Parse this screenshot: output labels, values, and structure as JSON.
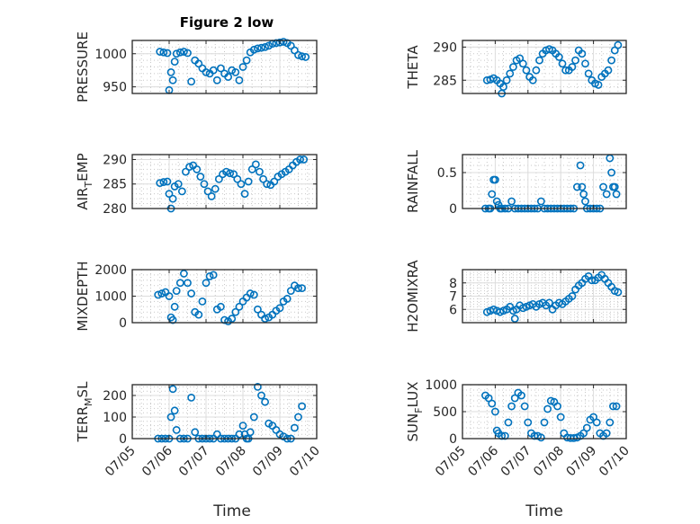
{
  "figure": {
    "title": "Figure 2 low",
    "xlabel": "Time",
    "x_tick_labels": [
      "07/05",
      "07/06",
      "07/07",
      "07/08",
      "07/09",
      "07/10"
    ]
  },
  "chart_data": [
    {
      "type": "scatter",
      "panel": "PRESSURE",
      "ylabel": "PRESSURE",
      "ylim": [
        940,
        1020
      ],
      "yticks": [
        950,
        1000
      ],
      "ytick_labels": [
        "950",
        "1000"
      ],
      "x_day_range": [
        5.0,
        10.0
      ],
      "marker": "circle",
      "color": "#0072BD",
      "x": [
        5.75,
        5.85,
        5.95,
        6.0,
        6.05,
        6.1,
        6.15,
        6.2,
        6.3,
        6.4,
        6.5,
        6.6,
        6.7,
        6.8,
        6.9,
        7.0,
        7.1,
        7.2,
        7.3,
        7.4,
        7.5,
        7.6,
        7.7,
        7.8,
        7.9,
        8.0,
        8.1,
        8.2,
        8.3,
        8.4,
        8.5,
        8.6,
        8.7,
        8.8,
        8.9,
        9.0,
        9.1,
        9.2,
        9.3,
        9.4,
        9.5,
        9.6,
        9.7
      ],
      "y": [
        1003,
        1002,
        1001,
        945,
        972,
        960,
        988,
        1000,
        1002,
        1003,
        1001,
        958,
        990,
        985,
        978,
        972,
        970,
        975,
        960,
        978,
        970,
        965,
        975,
        972,
        960,
        980,
        990,
        1002,
        1006,
        1008,
        1009,
        1010,
        1012,
        1015,
        1016,
        1017,
        1018,
        1016,
        1012,
        1005,
        998,
        996,
        995
      ]
    },
    {
      "type": "scatter",
      "panel": "THETA",
      "ylabel": "THETA",
      "ylim": [
        283,
        291
      ],
      "yticks": [
        285,
        290
      ],
      "ytick_labels": [
        "285",
        "290"
      ],
      "x_day_range": [
        5.0,
        10.0
      ],
      "marker": "circle",
      "color": "#0072BD",
      "x": [
        5.75,
        5.85,
        5.95,
        6.05,
        6.15,
        6.2,
        6.25,
        6.35,
        6.45,
        6.55,
        6.65,
        6.75,
        6.85,
        6.95,
        7.05,
        7.15,
        7.25,
        7.35,
        7.45,
        7.55,
        7.65,
        7.75,
        7.85,
        7.95,
        8.05,
        8.15,
        8.25,
        8.35,
        8.45,
        8.55,
        8.65,
        8.75,
        8.85,
        8.95,
        9.05,
        9.15,
        9.25,
        9.35,
        9.45,
        9.55,
        9.65,
        9.75
      ],
      "y": [
        285.0,
        285.1,
        285.3,
        285.0,
        284.5,
        283.0,
        284.0,
        285.0,
        286.0,
        287.0,
        288.0,
        288.3,
        287.5,
        286.5,
        285.5,
        285.0,
        286.5,
        288.0,
        289.0,
        289.5,
        289.7,
        289.5,
        289.0,
        288.5,
        287.5,
        286.5,
        286.5,
        287.0,
        288.0,
        289.5,
        289.0,
        287.5,
        286.0,
        285.0,
        284.5,
        284.3,
        285.5,
        286.0,
        286.5,
        288.0,
        289.5,
        290.3
      ]
    },
    {
      "type": "scatter",
      "panel": "AIR_TEMP",
      "ylabel": "AIR_TEMP",
      "ylim": [
        280,
        291
      ],
      "yticks": [
        280,
        285,
        290
      ],
      "ytick_labels": [
        "280",
        "285",
        "290"
      ],
      "x_day_range": [
        5.0,
        10.0
      ],
      "marker": "circle",
      "color": "#0072BD",
      "x": [
        5.75,
        5.85,
        5.95,
        6.0,
        6.05,
        6.1,
        6.15,
        6.25,
        6.35,
        6.45,
        6.55,
        6.65,
        6.75,
        6.85,
        6.95,
        7.05,
        7.15,
        7.25,
        7.35,
        7.45,
        7.55,
        7.65,
        7.75,
        7.85,
        7.95,
        8.05,
        8.15,
        8.25,
        8.35,
        8.45,
        8.55,
        8.65,
        8.75,
        8.85,
        8.95,
        9.05,
        9.15,
        9.25,
        9.35,
        9.45,
        9.55,
        9.65
      ],
      "y": [
        285.2,
        285.4,
        285.5,
        283.0,
        280.0,
        282.0,
        284.5,
        285.0,
        283.5,
        287.5,
        288.5,
        288.8,
        288.0,
        286.5,
        285.0,
        283.5,
        282.5,
        284.0,
        286.0,
        287.0,
        287.5,
        287.2,
        287.0,
        286.0,
        285.0,
        283.0,
        285.5,
        288.0,
        289.0,
        287.5,
        286.0,
        285.0,
        284.8,
        285.5,
        286.5,
        287.0,
        287.5,
        288.0,
        288.8,
        289.5,
        290.0,
        290.0
      ]
    },
    {
      "type": "scatter",
      "panel": "RAINFALL",
      "ylabel": "RAINFALL",
      "ylim": [
        0,
        0.75
      ],
      "yticks": [
        0,
        0.5
      ],
      "ytick_labels": [
        "0",
        "0.5"
      ],
      "x_day_range": [
        5.0,
        10.0
      ],
      "marker": "circle",
      "color": "#0072BD",
      "x": [
        5.7,
        5.8,
        5.85,
        5.9,
        5.95,
        6.0,
        6.05,
        6.1,
        6.15,
        6.2,
        6.3,
        6.4,
        6.5,
        6.6,
        6.7,
        6.8,
        6.9,
        7.0,
        7.1,
        7.2,
        7.3,
        7.4,
        7.5,
        7.6,
        7.7,
        7.8,
        7.9,
        8.0,
        8.1,
        8.2,
        8.3,
        8.4,
        8.5,
        8.6,
        8.65,
        8.7,
        8.75,
        8.8,
        8.9,
        9.0,
        9.1,
        9.2,
        9.3,
        9.4,
        9.5,
        9.55,
        9.6,
        9.65,
        9.7
      ],
      "y": [
        0,
        0,
        0,
        0.2,
        0.4,
        0.4,
        0.1,
        0.05,
        0,
        0,
        0,
        0,
        0.1,
        0,
        0,
        0,
        0,
        0,
        0,
        0,
        0,
        0.1,
        0,
        0,
        0,
        0,
        0,
        0,
        0,
        0,
        0,
        0,
        0.3,
        0.6,
        0.3,
        0.2,
        0.1,
        0,
        0,
        0,
        0,
        0,
        0.3,
        0.2,
        0.7,
        0.5,
        0.3,
        0.3,
        0.2
      ]
    },
    {
      "type": "scatter",
      "panel": "MIXDEPTH",
      "ylabel": "MIXDEPTH",
      "ylim": [
        0,
        2000
      ],
      "yticks": [
        0,
        1000,
        2000
      ],
      "ytick_labels": [
        "0",
        "1000",
        "2000"
      ],
      "x_day_range": [
        5.0,
        10.0
      ],
      "marker": "circle",
      "color": "#0072BD",
      "x": [
        5.7,
        5.8,
        5.9,
        6.0,
        6.05,
        6.1,
        6.15,
        6.2,
        6.3,
        6.4,
        6.5,
        6.6,
        6.7,
        6.8,
        6.9,
        7.0,
        7.1,
        7.2,
        7.3,
        7.4,
        7.5,
        7.6,
        7.7,
        7.8,
        7.9,
        8.0,
        8.1,
        8.2,
        8.3,
        8.4,
        8.5,
        8.6,
        8.7,
        8.8,
        8.9,
        9.0,
        9.1,
        9.2,
        9.3,
        9.4,
        9.5,
        9.6
      ],
      "y": [
        1050,
        1100,
        1150,
        1000,
        200,
        100,
        600,
        1200,
        1500,
        1850,
        1500,
        1100,
        400,
        300,
        800,
        1500,
        1750,
        1800,
        500,
        600,
        100,
        50,
        150,
        400,
        600,
        800,
        950,
        1100,
        1050,
        500,
        300,
        150,
        200,
        300,
        450,
        550,
        800,
        900,
        1200,
        1400,
        1300,
        1300
      ]
    },
    {
      "type": "scatter",
      "panel": "H2OMIXRA",
      "ylabel": "H2OMIXRA",
      "ylim": [
        5,
        9
      ],
      "yticks": [
        6,
        7,
        8
      ],
      "ytick_labels": [
        "6",
        "7",
        "8"
      ],
      "x_day_range": [
        5.0,
        10.0
      ],
      "marker": "circle",
      "color": "#0072BD",
      "x": [
        5.75,
        5.85,
        5.95,
        6.05,
        6.15,
        6.25,
        6.35,
        6.45,
        6.55,
        6.6,
        6.65,
        6.75,
        6.85,
        6.95,
        7.05,
        7.15,
        7.25,
        7.35,
        7.45,
        7.55,
        7.65,
        7.75,
        7.85,
        7.95,
        8.05,
        8.15,
        8.25,
        8.35,
        8.45,
        8.55,
        8.65,
        8.75,
        8.85,
        8.95,
        9.05,
        9.15,
        9.25,
        9.35,
        9.45,
        9.55,
        9.65,
        9.75
      ],
      "y": [
        5.8,
        5.9,
        6.0,
        5.9,
        5.8,
        5.9,
        6.0,
        6.2,
        5.9,
        5.3,
        6.0,
        6.3,
        6.1,
        6.2,
        6.3,
        6.4,
        6.2,
        6.4,
        6.5,
        6.3,
        6.5,
        6.0,
        6.3,
        6.5,
        6.4,
        6.6,
        6.8,
        7.0,
        7.5,
        7.8,
        8.0,
        8.3,
        8.5,
        8.2,
        8.2,
        8.4,
        8.6,
        8.3,
        8.0,
        7.7,
        7.4,
        7.3
      ]
    },
    {
      "type": "scatter",
      "panel": "TERR_MSL",
      "ylabel": "TERR_MSL",
      "ylim": [
        0,
        250
      ],
      "yticks": [
        0,
        100,
        200
      ],
      "ytick_labels": [
        "0",
        "100",
        "200"
      ],
      "x_day_range": [
        5.0,
        10.0
      ],
      "marker": "circle",
      "color": "#0072BD",
      "x": [
        5.7,
        5.8,
        5.9,
        6.0,
        6.05,
        6.1,
        6.15,
        6.2,
        6.3,
        6.4,
        6.5,
        6.6,
        6.7,
        6.8,
        6.9,
        7.0,
        7.1,
        7.2,
        7.3,
        7.4,
        7.5,
        7.6,
        7.7,
        7.8,
        7.9,
        8.0,
        8.05,
        8.1,
        8.15,
        8.2,
        8.3,
        8.4,
        8.5,
        8.6,
        8.7,
        8.8,
        8.9,
        9.0,
        9.1,
        9.2,
        9.3,
        9.4,
        9.5,
        9.6
      ],
      "y": [
        0,
        0,
        0,
        0,
        100,
        230,
        130,
        40,
        0,
        0,
        0,
        190,
        30,
        0,
        0,
        0,
        0,
        0,
        20,
        0,
        0,
        0,
        0,
        0,
        20,
        60,
        20,
        0,
        0,
        30,
        100,
        240,
        200,
        170,
        70,
        60,
        40,
        20,
        10,
        0,
        0,
        50,
        100,
        150
      ]
    },
    {
      "type": "scatter",
      "panel": "SUN_FLUX",
      "ylabel": "SUN_FLUX",
      "ylim": [
        0,
        1000
      ],
      "yticks": [
        0,
        500,
        1000
      ],
      "ytick_labels": [
        "0",
        "500",
        "1000"
      ],
      "x_day_range": [
        5.0,
        10.0
      ],
      "marker": "circle",
      "color": "#0072BD",
      "x": [
        5.7,
        5.8,
        5.9,
        6.0,
        6.05,
        6.1,
        6.2,
        6.3,
        6.4,
        6.5,
        6.6,
        6.7,
        6.8,
        6.9,
        7.0,
        7.1,
        7.2,
        7.3,
        7.4,
        7.5,
        7.6,
        7.7,
        7.8,
        7.9,
        8.0,
        8.1,
        8.2,
        8.3,
        8.4,
        8.5,
        8.6,
        8.7,
        8.8,
        8.9,
        9.0,
        9.1,
        9.2,
        9.3,
        9.4,
        9.5,
        9.6,
        9.7
      ],
      "y": [
        800,
        750,
        650,
        500,
        150,
        100,
        50,
        50,
        300,
        600,
        750,
        850,
        800,
        600,
        300,
        100,
        50,
        50,
        20,
        300,
        550,
        700,
        680,
        600,
        400,
        100,
        20,
        10,
        10,
        20,
        50,
        100,
        200,
        350,
        400,
        300,
        100,
        50,
        100,
        300,
        600,
        600
      ]
    }
  ]
}
